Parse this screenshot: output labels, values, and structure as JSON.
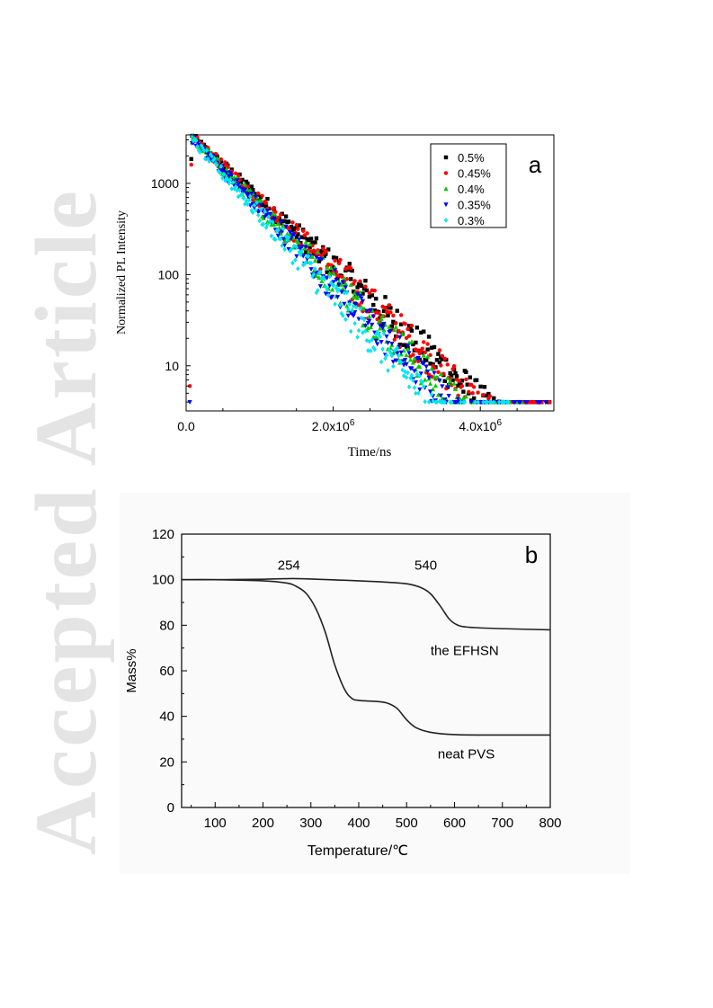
{
  "watermark": "Accepted Article",
  "chart_data": [
    {
      "type": "scatter",
      "panel_label": "a",
      "xlabel": "Time/ns",
      "ylabel": "Normalized PL Intensity",
      "xlim": [
        0,
        5000000
      ],
      "ylim": [
        3.2,
        3400
      ],
      "yscale": "log",
      "xticks": [
        {
          "value": 0,
          "label": "0.0"
        },
        {
          "value": 2000000,
          "label": "2.0x10",
          "sup": "6"
        },
        {
          "value": 4000000,
          "label": "4.0x10",
          "sup": "6"
        }
      ],
      "yticks": [
        {
          "value": 10,
          "label": "10"
        },
        {
          "value": 100,
          "label": "100"
        },
        {
          "value": 1000,
          "label": "1000"
        }
      ],
      "legend_position": "top-right",
      "series": [
        {
          "name": "0.5%",
          "marker": "square",
          "color": "#000000",
          "lifetime_ns": 590000,
          "y0": 3200,
          "floor": 4,
          "tail_end": 4950000
        },
        {
          "name": "0.45%",
          "marker": "circle",
          "color": "#ff0000",
          "lifetime_ns": 580000,
          "y0": 3200,
          "floor": 4,
          "tail_end": 4950000
        },
        {
          "name": "0.4%",
          "marker": "triangle-up",
          "color": "#00cc00",
          "lifetime_ns": 540000,
          "y0": 3100,
          "floor": 4,
          "tail_end": 4600000
        },
        {
          "name": "0.35%",
          "marker": "triangle-down",
          "color": "#0000ff",
          "lifetime_ns": 520000,
          "y0": 3100,
          "floor": 4,
          "tail_end": 4900000
        },
        {
          "name": "0.3%",
          "marker": "diamond",
          "color": "#00e5ee",
          "lifetime_ns": 490000,
          "y0": 3000,
          "floor": 4,
          "tail_end": 4400000
        }
      ]
    },
    {
      "type": "line",
      "panel_label": "b",
      "xlabel": "Temperature/℃",
      "ylabel": "Mass%",
      "xlim": [
        30,
        800
      ],
      "ylim": [
        0,
        120
      ],
      "xticks": [
        100,
        200,
        300,
        400,
        500,
        600,
        700,
        800
      ],
      "yticks": [
        0,
        20,
        40,
        60,
        80,
        100,
        120
      ],
      "annotations": [
        {
          "text": "254",
          "x": 254,
          "y": 104.5
        },
        {
          "text": "540",
          "x": 540,
          "y": 104.5
        }
      ],
      "series": [
        {
          "name": "the EFHSN",
          "label_at": {
            "x": 550,
            "y": 67
          },
          "x": [
            30,
            100,
            200,
            260,
            300,
            400,
            450,
            500,
            530,
            550,
            570,
            590,
            610,
            640,
            700,
            800
          ],
          "y": [
            100,
            100,
            100.2,
            100.5,
            100.3,
            99.5,
            99,
            98.2,
            96.5,
            93.8,
            88.5,
            82.5,
            79.8,
            79,
            78.5,
            78
          ]
        },
        {
          "name": "neat PVS",
          "label_at": {
            "x": 565,
            "y": 21.5
          },
          "x": [
            30,
            100,
            200,
            250,
            270,
            290,
            310,
            330,
            350,
            370,
            385,
            400,
            440,
            460,
            480,
            500,
            520,
            550,
            600,
            700,
            800
          ],
          "y": [
            100,
            100,
            99.5,
            98.5,
            97,
            94,
            87.5,
            77,
            62.5,
            52,
            48,
            47,
            46.5,
            45.8,
            43.5,
            38.5,
            35,
            33,
            32,
            31.8,
            31.8
          ]
        }
      ]
    }
  ]
}
